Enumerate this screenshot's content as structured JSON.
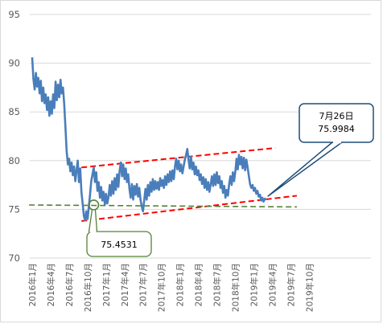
{
  "chart_data": {
    "type": "line",
    "title": "",
    "xlabel": "",
    "ylabel": "",
    "ylim": [
      70,
      95
    ],
    "yticks": [
      "70",
      "75",
      "80",
      "85",
      "90",
      "95"
    ],
    "xtick_labels": [
      "2016年1月",
      "2016年4月",
      "2016年7月",
      "2016年10月",
      "2017年1月",
      "2017年4月",
      "2017年7月",
      "2017年10月",
      "2018年1月",
      "2018年4月",
      "2018年7月",
      "2018年10月",
      "2019年1月",
      "2019年4月",
      "2019年7月",
      "2019年10月"
    ],
    "grid": "horizontal",
    "legend": "none",
    "series": [
      {
        "color": "#4a7ebb",
        "points": [
          [
            0.0,
            90.6
          ],
          [
            0.2,
            88.4
          ],
          [
            0.4,
            87.3
          ],
          [
            0.6,
            89.0
          ],
          [
            0.8,
            87.6
          ],
          [
            1.0,
            88.5
          ],
          [
            1.2,
            86.9
          ],
          [
            1.4,
            88.2
          ],
          [
            1.6,
            86.1
          ],
          [
            1.8,
            87.5
          ],
          [
            2.0,
            85.9
          ],
          [
            2.2,
            86.8
          ],
          [
            2.4,
            85.2
          ],
          [
            2.6,
            86.5
          ],
          [
            2.8,
            84.6
          ],
          [
            3.0,
            86.1
          ],
          [
            3.2,
            84.8
          ],
          [
            3.4,
            86.8
          ],
          [
            3.6,
            85.4
          ],
          [
            3.8,
            88.1
          ],
          [
            4.0,
            86.2
          ],
          [
            4.2,
            87.8
          ],
          [
            4.4,
            86.5
          ],
          [
            4.6,
            88.3
          ],
          [
            4.8,
            86.9
          ],
          [
            5.0,
            87.5
          ],
          [
            5.2,
            85.8
          ],
          [
            5.4,
            83.5
          ],
          [
            5.6,
            81.0
          ],
          [
            5.8,
            79.6
          ],
          [
            6.0,
            80.2
          ],
          [
            6.2,
            78.9
          ],
          [
            6.4,
            79.8
          ],
          [
            6.6,
            78.5
          ],
          [
            6.8,
            79.4
          ],
          [
            7.0,
            77.9
          ],
          [
            7.2,
            79.0
          ],
          [
            7.4,
            80.0
          ],
          [
            7.6,
            77.8
          ],
          [
            7.8,
            79.2
          ],
          [
            8.0,
            76.8
          ],
          [
            8.2,
            75.6
          ],
          [
            8.4,
            74.3
          ],
          [
            8.6,
            73.9
          ],
          [
            8.8,
            74.8
          ],
          [
            9.0,
            74.0
          ],
          [
            9.2,
            75.3
          ],
          [
            9.4,
            76.5
          ],
          [
            9.6,
            77.9
          ],
          [
            9.8,
            78.6
          ],
          [
            10.0,
            79.3
          ],
          [
            10.2,
            77.8
          ],
          [
            10.4,
            78.8
          ],
          [
            10.6,
            76.9
          ],
          [
            10.8,
            77.8
          ],
          [
            11.0,
            76.2
          ],
          [
            11.2,
            77.3
          ],
          [
            11.4,
            75.9
          ],
          [
            11.6,
            76.8
          ],
          [
            11.8,
            75.5
          ],
          [
            12.0,
            76.6
          ],
          [
            12.2,
            75.6
          ],
          [
            12.4,
            76.3
          ],
          [
            12.6,
            77.5
          ],
          [
            12.8,
            76.4
          ],
          [
            13.0,
            77.9
          ],
          [
            13.2,
            76.6
          ],
          [
            13.4,
            78.2
          ],
          [
            13.6,
            77.0
          ],
          [
            13.8,
            78.6
          ],
          [
            14.0,
            77.3
          ],
          [
            14.2,
            78.9
          ],
          [
            14.4,
            79.8
          ],
          [
            14.6,
            78.4
          ],
          [
            14.8,
            79.6
          ],
          [
            15.0,
            78.1
          ],
          [
            15.2,
            79.2
          ],
          [
            15.4,
            77.8
          ],
          [
            15.6,
            78.6
          ],
          [
            15.8,
            77.1
          ],
          [
            16.0,
            76.2
          ],
          [
            16.2,
            77.6
          ],
          [
            16.4,
            76.0
          ],
          [
            16.6,
            77.4
          ],
          [
            16.8,
            76.5
          ],
          [
            17.0,
            77.6
          ],
          [
            17.2,
            76.3
          ],
          [
            17.4,
            77.2
          ],
          [
            17.6,
            76.0
          ],
          [
            17.8,
            75.3
          ],
          [
            18.0,
            74.8
          ],
          [
            18.2,
            75.9
          ],
          [
            18.4,
            77.1
          ],
          [
            18.6,
            76.0
          ],
          [
            18.8,
            77.5
          ],
          [
            19.0,
            76.4
          ],
          [
            19.2,
            77.8
          ],
          [
            19.4,
            76.8
          ],
          [
            19.6,
            78.1
          ],
          [
            19.8,
            77.0
          ],
          [
            20.0,
            77.9
          ],
          [
            20.2,
            77.1
          ],
          [
            20.4,
            77.8
          ],
          [
            20.6,
            77.0
          ],
          [
            20.8,
            78.2
          ],
          [
            21.0,
            77.4
          ],
          [
            21.2,
            78.0
          ],
          [
            21.4,
            77.2
          ],
          [
            21.6,
            78.4
          ],
          [
            21.8,
            77.5
          ],
          [
            22.0,
            78.6
          ],
          [
            22.2,
            77.8
          ],
          [
            22.4,
            78.9
          ],
          [
            22.6,
            77.9
          ],
          [
            22.8,
            79.0
          ],
          [
            23.0,
            78.1
          ],
          [
            23.2,
            79.4
          ],
          [
            23.4,
            80.2
          ],
          [
            23.6,
            79.1
          ],
          [
            23.8,
            80.0
          ],
          [
            24.0,
            78.9
          ],
          [
            24.2,
            79.6
          ],
          [
            24.4,
            78.7
          ],
          [
            24.6,
            79.4
          ],
          [
            24.8,
            80.1
          ],
          [
            25.0,
            80.6
          ],
          [
            25.2,
            81.2
          ],
          [
            25.4,
            80.1
          ],
          [
            25.6,
            79.2
          ],
          [
            25.8,
            80.4
          ],
          [
            26.0,
            79.1
          ],
          [
            26.2,
            79.8
          ],
          [
            26.4,
            78.6
          ],
          [
            26.6,
            79.4
          ],
          [
            26.8,
            78.5
          ],
          [
            27.0,
            79.0
          ],
          [
            27.2,
            78.0
          ],
          [
            27.4,
            78.6
          ],
          [
            27.6,
            77.6
          ],
          [
            27.8,
            78.3
          ],
          [
            28.0,
            77.2
          ],
          [
            28.2,
            78.1
          ],
          [
            28.4,
            77.0
          ],
          [
            28.6,
            77.8
          ],
          [
            28.8,
            76.8
          ],
          [
            29.0,
            77.6
          ],
          [
            29.2,
            78.4
          ],
          [
            29.4,
            77.4
          ],
          [
            29.6,
            78.6
          ],
          [
            29.8,
            77.5
          ],
          [
            30.0,
            78.8
          ],
          [
            30.2,
            77.7
          ],
          [
            30.4,
            78.4
          ],
          [
            30.6,
            77.2
          ],
          [
            30.8,
            77.9
          ],
          [
            31.0,
            76.7
          ],
          [
            31.2,
            77.4
          ],
          [
            31.4,
            76.2
          ],
          [
            31.6,
            77.0
          ],
          [
            31.8,
            76.4
          ],
          [
            32.0,
            77.6
          ],
          [
            32.2,
            78.4
          ],
          [
            32.4,
            77.5
          ],
          [
            32.6,
            78.8
          ],
          [
            32.8,
            77.9
          ],
          [
            33.0,
            78.9
          ],
          [
            33.2,
            80.2
          ],
          [
            33.4,
            79.1
          ],
          [
            33.6,
            80.6
          ],
          [
            33.8,
            79.6
          ],
          [
            34.0,
            80.4
          ],
          [
            34.2,
            79.2
          ],
          [
            34.4,
            80.3
          ],
          [
            34.6,
            79.0
          ],
          [
            34.8,
            80.1
          ],
          [
            35.0,
            79.3
          ],
          [
            35.2,
            78.4
          ],
          [
            35.4,
            77.6
          ],
          [
            35.6,
            77.2
          ],
          [
            35.8,
            77.5
          ],
          [
            36.0,
            76.9
          ],
          [
            36.2,
            77.2
          ],
          [
            36.4,
            76.6
          ],
          [
            36.6,
            76.9
          ],
          [
            36.8,
            76.3
          ],
          [
            37.0,
            76.5
          ],
          [
            37.2,
            75.9
          ],
          [
            37.4,
            76.2
          ],
          [
            37.6,
            75.8
          ],
          [
            37.8,
            76.1
          ],
          [
            38.0,
            75.9984
          ]
        ]
      }
    ],
    "reference_lines": [
      {
        "name": "upper-trend",
        "color": "#ff0000",
        "style": "dashed",
        "points": [
          [
            8.0,
            79.3
          ],
          [
            39.5,
            81.3
          ]
        ]
      },
      {
        "name": "lower-trend",
        "color": "#ff0000",
        "style": "dashed",
        "points": [
          [
            8.0,
            73.8
          ],
          [
            43.0,
            76.4
          ]
        ]
      },
      {
        "name": "support",
        "color": "#548235",
        "style": "dashed",
        "points": [
          [
            -0.5,
            75.45
          ],
          [
            43.0,
            75.25
          ]
        ]
      }
    ],
    "annotations": [
      {
        "label": "75.4531",
        "value": 75.4531,
        "x": 10.0,
        "color": "#548235"
      },
      {
        "label": "7月26日\n75.9984",
        "line1": "7月26日",
        "line2": "75.9984",
        "value": 75.9984,
        "x": 38.0,
        "color": "#1f4e79"
      }
    ]
  }
}
